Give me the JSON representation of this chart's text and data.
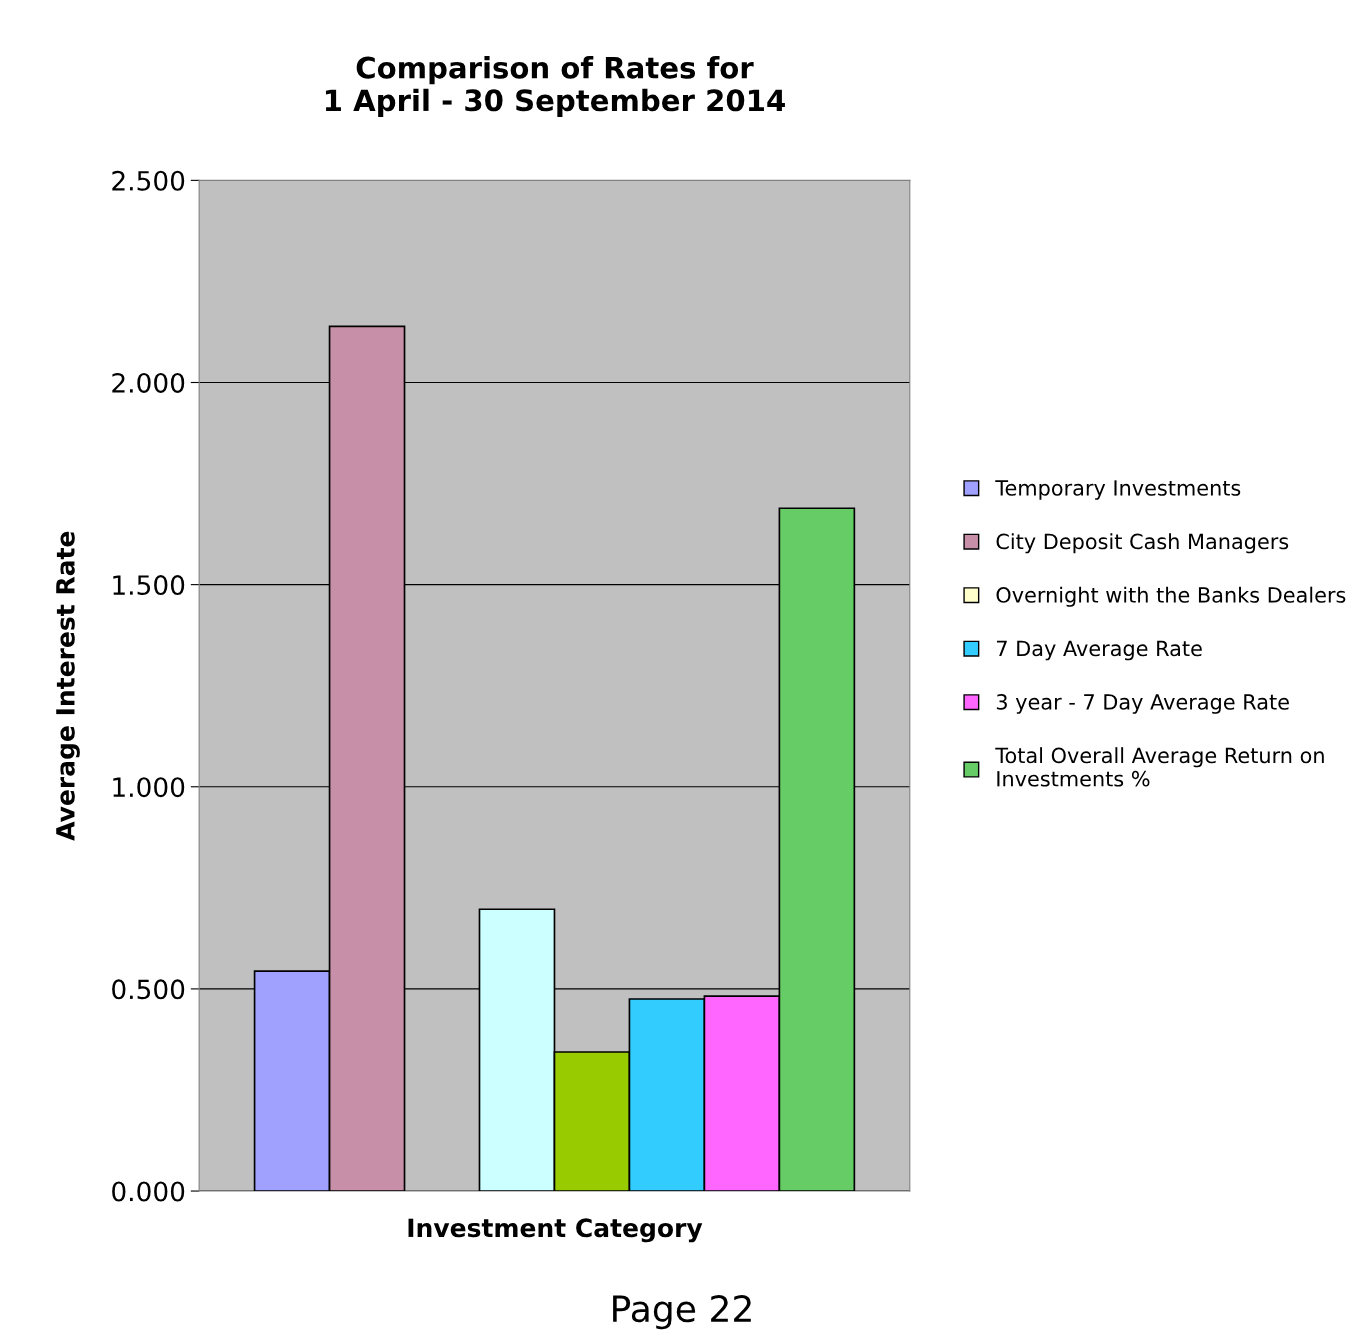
{
  "chart_data": {
    "type": "bar",
    "title": "Comparison of Rates for\n1 April - 30 September 2014",
    "xlabel": "Investment Category",
    "ylabel": "Average Interest Rate",
    "categories": [
      null
    ],
    "series": [
      {
        "name": "Temporary Investments",
        "color": "#a0a0ff",
        "values": [
          0.544
        ]
      },
      {
        "name": "City Deposit Cash Managers",
        "color": "#c890a8",
        "values": [
          2.139
        ]
      },
      {
        "name": "Overnight with the Banks Dealers",
        "color": "#ffffcc",
        "values": [
          null
        ]
      },
      {
        "color": "#ccffff",
        "values": [
          0.697
        ]
      },
      {
        "color": "#99cc00",
        "values": [
          0.344
        ]
      },
      {
        "name": "7 Day Average Rate",
        "color": "#33ccff",
        "values": [
          0.475
        ]
      },
      {
        "name": "3 year - 7 Day Average Rate",
        "color": "#ff66ff",
        "values": [
          0.482
        ]
      },
      {
        "name": "Total Overall Average Return on\nInvestments %",
        "color": "#66cc66",
        "values": [
          1.689
        ]
      }
    ],
    "ylim": [
      0,
      2.5
    ],
    "yticks": [
      {
        "value": 0,
        "label": "0.000"
      },
      {
        "value": 0.5,
        "label": "0.500"
      },
      {
        "value": 1,
        "label": "1.000"
      },
      {
        "value": 1.5,
        "label": "1.500"
      },
      {
        "value": 2,
        "label": "2.000"
      },
      {
        "value": 2.5,
        "label": "2.500"
      }
    ],
    "grid": "y",
    "legend": "right",
    "annotations": [
      "Page 22"
    ]
  }
}
